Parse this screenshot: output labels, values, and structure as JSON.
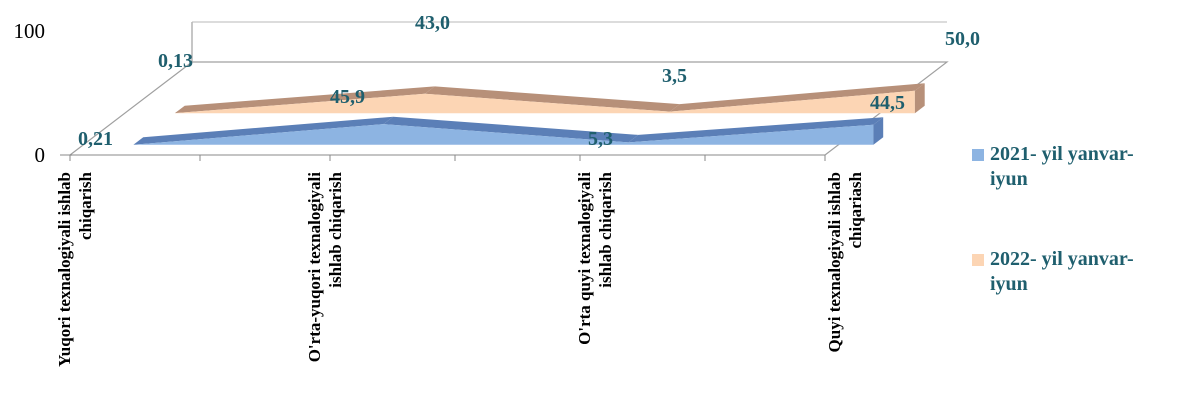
{
  "chart_data": {
    "type": "area",
    "three_d": true,
    "categories": [
      [
        "Yuqori texnalogiyali ishlab",
        "chiqarish"
      ],
      [
        "O'rta-yuqori texnalogiyali",
        "ishlab chiqarish"
      ],
      [
        "O'rta quyi texnalogiyali",
        "ishlab chiqarish"
      ],
      [
        "Quyi texnalogiyali ishlab",
        "chiqariash"
      ]
    ],
    "series": [
      {
        "name": [
          "2021- yil yanvar-",
          "iyun"
        ],
        "values": [
          0.21,
          45.9,
          5.3,
          44.5
        ],
        "labels": [
          "0,21",
          "45,9",
          "5,3",
          "44,5"
        ],
        "color": "#8db4e2",
        "shade": "#5b7fb7"
      },
      {
        "name": [
          "2022- yil yanvar-",
          "iyun"
        ],
        "values": [
          0.13,
          43.0,
          3.5,
          50.0
        ],
        "labels": [
          "0,13",
          "43,0",
          "3,5",
          "50,0"
        ],
        "color": "#fcd5b4",
        "shade": "#b79079"
      }
    ],
    "y_ticks": [
      "0",
      "100"
    ],
    "ylim": [
      0,
      100
    ],
    "legend_position": "right",
    "grid": false
  }
}
